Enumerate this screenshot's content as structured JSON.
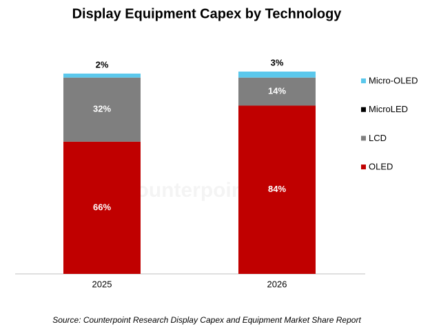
{
  "chart_data": {
    "type": "stacked_bar",
    "title": "Display Equipment Capex by Technology",
    "categories": [
      "2025",
      "2026"
    ],
    "series": [
      {
        "name": "OLED",
        "color": "#c00000",
        "values": [
          66,
          84
        ],
        "value_labels": [
          "66%",
          "84%"
        ]
      },
      {
        "name": "LCD",
        "color": "#7f7f7f",
        "values": [
          32,
          14
        ],
        "value_labels": [
          "32%",
          "14%"
        ]
      },
      {
        "name": "MicroLED",
        "color": "#000000",
        "values": [
          0,
          0
        ]
      },
      {
        "name": "Micro-OLED",
        "color": "#5bc8ec",
        "values": [
          2,
          3
        ],
        "value_labels": [
          "2%",
          "3%"
        ]
      }
    ],
    "watermark": "Counterpoint",
    "source": "Source: Counterpoint Research Display Capex and Equipment Market Share Report"
  }
}
